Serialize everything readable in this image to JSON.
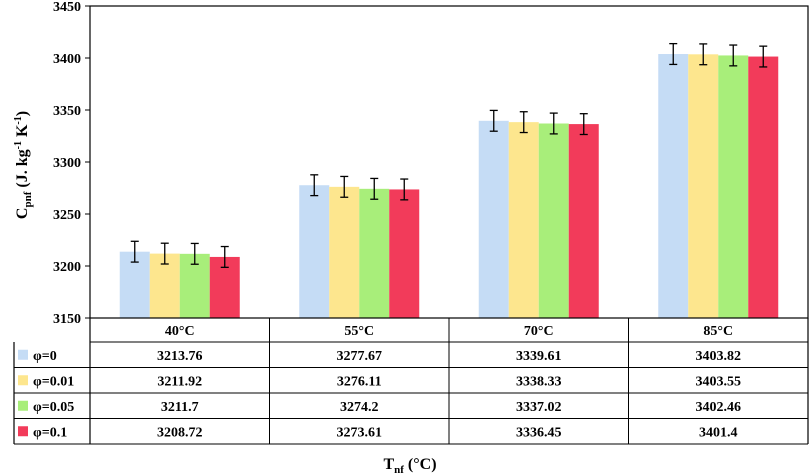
{
  "chart_data": {
    "type": "bar",
    "title": "",
    "xlabel": "T",
    "xlabel_sub": "nf",
    "xlabel_unit": " (°C)",
    "ylabel_main": "C",
    "ylabel_sub": "pnf",
    "ylabel_unit_a": " (J. kg",
    "ylabel_exp1": "-1",
    "ylabel_unit_b": " K",
    "ylabel_exp2": "-1",
    "ylabel_close": ")",
    "ylim": [
      3150,
      3450
    ],
    "yticks": [
      "3150",
      "3200",
      "3250",
      "3300",
      "3350",
      "3400",
      "3450"
    ],
    "categories": [
      "40°C",
      "55°C",
      "70°C",
      "85°C"
    ],
    "error_bar": 10,
    "series": [
      {
        "name": "φ=0",
        "color": "#c5dcf5",
        "values": [
          3213.76,
          3277.67,
          3339.61,
          3403.82
        ],
        "labels": [
          "3213.76",
          "3277.67",
          "3339.61",
          "3403.82"
        ]
      },
      {
        "name": "φ=0.01",
        "color": "#fde68e",
        "values": [
          3211.92,
          3276.11,
          3338.33,
          3403.55
        ],
        "labels": [
          "3211.92",
          "3276.11",
          "3338.33",
          "3403.55"
        ]
      },
      {
        "name": "φ=0.05",
        "color": "#a8ee7a",
        "values": [
          3211.7,
          3274.2,
          3337.02,
          3402.46
        ],
        "labels": [
          "3211.7",
          "3274.2",
          "3337.02",
          "3402.46"
        ]
      },
      {
        "name": "φ=0.1",
        "color": "#f23b5a",
        "values": [
          3208.72,
          3273.61,
          3336.45,
          3401.4
        ],
        "labels": [
          "3208.72",
          "3273.61",
          "3336.45",
          "3401.4"
        ]
      }
    ]
  }
}
